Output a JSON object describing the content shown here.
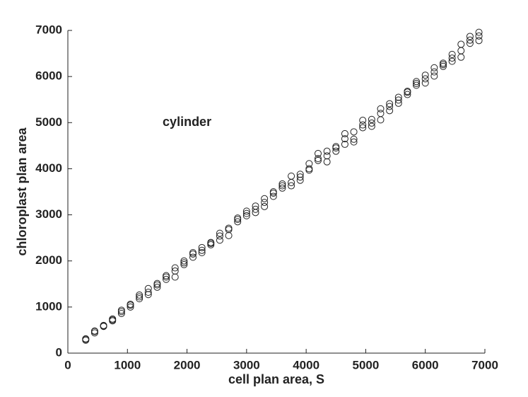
{
  "chart_data": {
    "type": "scatter",
    "annotation": "cylinder",
    "annotation_x": 2000,
    "annotation_y": 5000,
    "xlabel": "cell plan area, S",
    "ylabel": "chloroplast plan area",
    "xlim": [
      0,
      7000
    ],
    "ylim": [
      0,
      7000
    ],
    "xticks": [
      0,
      1000,
      2000,
      3000,
      4000,
      5000,
      6000,
      7000
    ],
    "yticks": [
      0,
      1000,
      2000,
      3000,
      4000,
      5000,
      6000,
      7000
    ],
    "color": "#222222",
    "x": [
      300,
      300,
      300,
      450,
      450,
      450,
      600,
      600,
      600,
      750,
      750,
      750,
      900,
      900,
      900,
      1050,
      1050,
      1050,
      1200,
      1200,
      1200,
      1350,
      1350,
      1350,
      1500,
      1500,
      1500,
      1650,
      1650,
      1650,
      1800,
      1800,
      1800,
      1950,
      1950,
      1950,
      2100,
      2100,
      2100,
      2250,
      2250,
      2250,
      2400,
      2400,
      2400,
      2550,
      2550,
      2550,
      2700,
      2700,
      2700,
      2850,
      2850,
      2850,
      3000,
      3000,
      3000,
      3150,
      3150,
      3150,
      3300,
      3300,
      3300,
      3450,
      3450,
      3450,
      3600,
      3600,
      3600,
      3750,
      3750,
      3750,
      3900,
      3900,
      3900,
      4050,
      4050,
      4050,
      4200,
      4200,
      4200,
      4350,
      4350,
      4350,
      4500,
      4500,
      4500,
      4650,
      4650,
      4650,
      4800,
      4800,
      4800,
      4950,
      4950,
      4950,
      5100,
      5100,
      5100,
      5250,
      5250,
      5250,
      5400,
      5400,
      5400,
      5550,
      5550,
      5550,
      5700,
      5700,
      5700,
      5850,
      5850,
      5850,
      6000,
      6000,
      6000,
      6150,
      6150,
      6150,
      6300,
      6300,
      6300,
      6450,
      6450,
      6450,
      6600,
      6600,
      6600,
      6750,
      6750,
      6750,
      6900,
      6900,
      6900
    ],
    "y": [
      280,
      300,
      310,
      440,
      470,
      480,
      580,
      590,
      600,
      700,
      720,
      740,
      860,
      900,
      930,
      1000,
      1040,
      1060,
      1180,
      1220,
      1260,
      1270,
      1320,
      1400,
      1430,
      1480,
      1510,
      1600,
      1650,
      1680,
      1650,
      1780,
      1850,
      1920,
      1960,
      2000,
      2080,
      2150,
      2180,
      2180,
      2230,
      2290,
      2350,
      2380,
      2400,
      2450,
      2540,
      2600,
      2550,
      2680,
      2710,
      2850,
      2900,
      2930,
      2980,
      3030,
      3080,
      3050,
      3120,
      3190,
      3180,
      3270,
      3350,
      3400,
      3470,
      3500,
      3580,
      3630,
      3670,
      3630,
      3700,
      3840,
      3750,
      3820,
      3880,
      3970,
      4000,
      4110,
      4180,
      4220,
      4330,
      4150,
      4280,
      4380,
      4380,
      4450,
      4480,
      4530,
      4650,
      4760,
      4580,
      4640,
      4800,
      4890,
      4950,
      5050,
      4920,
      4990,
      5070,
      5060,
      5200,
      5300,
      5260,
      5350,
      5410,
      5420,
      5490,
      5550,
      5610,
      5660,
      5680,
      5810,
      5850,
      5890,
      5860,
      5950,
      6030,
      6010,
      6100,
      6190,
      6220,
      6260,
      6290,
      6330,
      6400,
      6480,
      6420,
      6560,
      6700,
      6720,
      6790,
      6870,
      6780,
      6880,
      6960
    ]
  }
}
